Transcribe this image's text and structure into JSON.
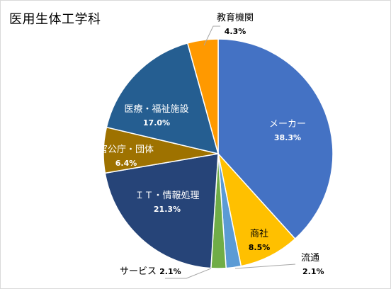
{
  "chart_data": {
    "type": "pie",
    "title": "医用生体工学科",
    "slices": [
      {
        "label": "メーカー",
        "value": 38.3,
        "value_label": "38.3%",
        "color": "#4472c4"
      },
      {
        "label": "商社",
        "value": 8.5,
        "value_label": "8.5%",
        "color": "#ffc000"
      },
      {
        "label": "流通",
        "value": 2.1,
        "value_label": "2.1%",
        "color": "#5b9bd5"
      },
      {
        "label": "サービス",
        "value": 2.1,
        "value_label": "2.1%",
        "color": "#70ad47"
      },
      {
        "label": "ＩＴ・情報処理",
        "value": 21.3,
        "value_label": "21.3%",
        "color": "#264478"
      },
      {
        "label": "官公庁・団体",
        "value": 6.4,
        "value_label": "6.4%",
        "color": "#9e7200"
      },
      {
        "label": "医療・福祉施設",
        "value": 17.0,
        "value_label": "17.0%",
        "color": "#255e91"
      },
      {
        "label": "教育機関",
        "value": 4.3,
        "value_label": "4.3%",
        "color": "#ff9900"
      }
    ],
    "start_angle_deg": 0,
    "direction": "clockwise"
  }
}
